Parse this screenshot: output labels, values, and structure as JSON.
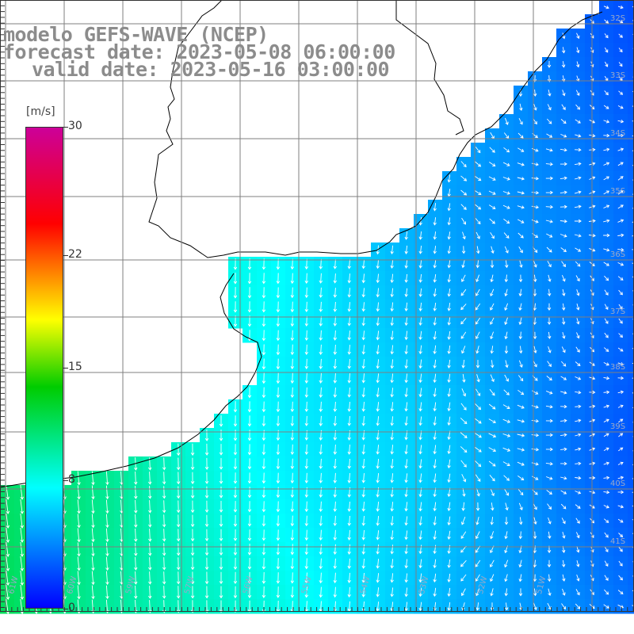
{
  "title": {
    "line1": "modelo GEFS-WAVE (NCEP)",
    "line2": "forecast date: 2023-05-08 06:00:00",
    "line3": "valid date: 2023-05-16 03:00:00"
  },
  "colorbar": {
    "unit": "[m/s]",
    "ticks": [
      "30",
      "22",
      "15",
      "8",
      "0"
    ],
    "tick_values": [
      30,
      22,
      15,
      8,
      0
    ],
    "range": [
      0,
      30
    ],
    "stops": [
      "#0000ff",
      "#00ffff",
      "#00cc00",
      "#ffff00",
      "#ff0000",
      "#cc0099"
    ]
  },
  "lat_labels": [
    "32S",
    "33S",
    "34S",
    "35S",
    "36S",
    "37S",
    "38S",
    "39S",
    "40S",
    "41S"
  ],
  "lon_labels": [
    "61W",
    "60W",
    "59W",
    "57W",
    "56W",
    "55W",
    "54W",
    "53W",
    "52W",
    "51W"
  ],
  "colors": {
    "land": "#ffffff",
    "coast": "#000000",
    "grid": "#7f7f7f",
    "arrow": "#ffffff"
  }
}
